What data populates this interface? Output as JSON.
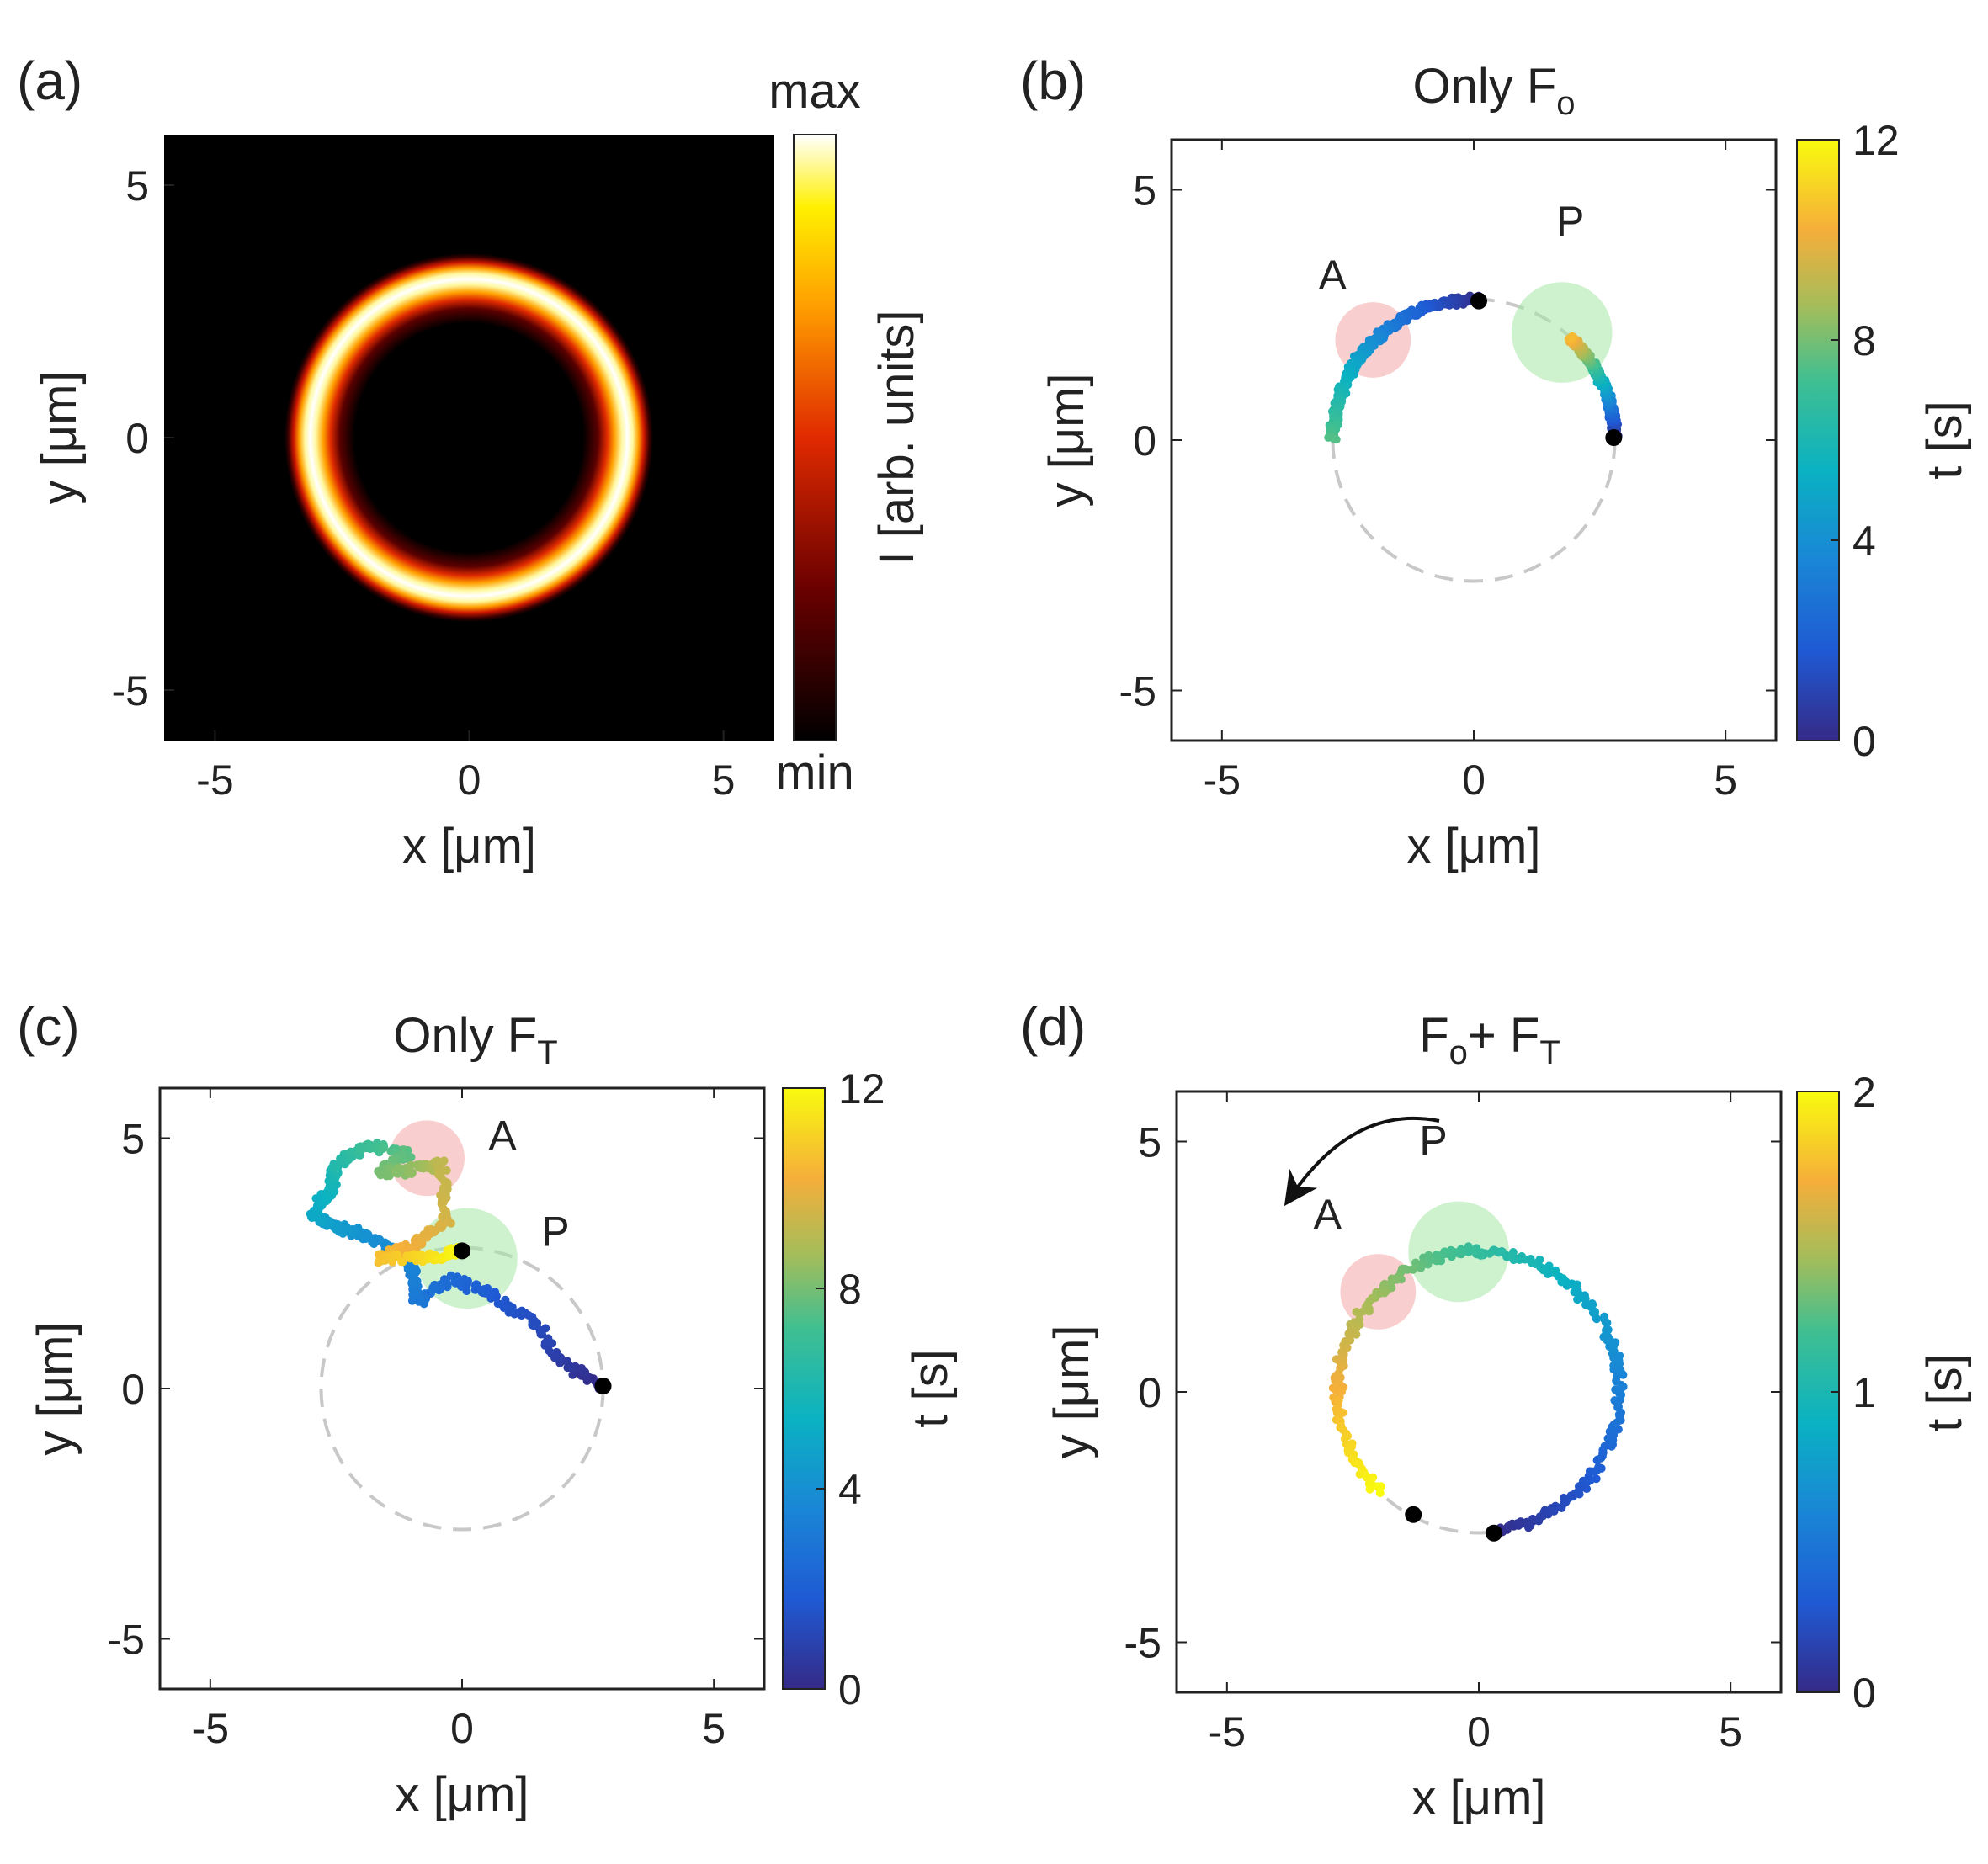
{
  "figure": {
    "panels": [
      {
        "id": "a",
        "label": "(a)",
        "title": "",
        "title_sub": ""
      },
      {
        "id": "b",
        "label": "(b)",
        "title": "Only F",
        "title_sub": "o"
      },
      {
        "id": "c",
        "label": "(c)",
        "title": "Only F",
        "title_sub": "T"
      },
      {
        "id": "d",
        "label": "(d)",
        "title": "F",
        "title_sub": "o",
        "title_rest": "+ F",
        "title_sub2": "T"
      }
    ],
    "xlabel_prefix": "x [",
    "ylabel_prefix": "y [",
    "unit": "μm",
    "unit_suffix": "]"
  },
  "chart_data": [
    {
      "panel": "a",
      "type": "heatmap",
      "description_text": "",
      "xlim": [
        -6,
        6
      ],
      "ylim": [
        -6,
        6
      ],
      "xticks": [
        -5,
        0,
        5
      ],
      "yticks": [
        -5,
        0,
        5
      ],
      "ring_radius": 2.75,
      "colormap": [
        "#000000",
        "#7a0000",
        "#e02000",
        "#ff9a00",
        "#ffe600",
        "#ffffff"
      ],
      "colorbar": {
        "label": "I [arb. units]",
        "top_label": "max",
        "bottom_label": "min"
      }
    },
    {
      "panel": "b",
      "type": "scatter",
      "xlim": [
        -6,
        6
      ],
      "ylim": [
        -6,
        6
      ],
      "xticks": [
        -5,
        0,
        5
      ],
      "yticks": [
        -5,
        0,
        5
      ],
      "guide_circle_radius": 2.8,
      "regions": [
        {
          "name": "A",
          "x": -2.0,
          "y": 2.0,
          "r": 0.75,
          "color": "#f4a6a6"
        },
        {
          "name": "P",
          "x": 1.75,
          "y": 2.15,
          "r": 1.0,
          "color": "#a6e8a6"
        }
      ],
      "start_points": [
        [
          0.1,
          2.78
        ],
        [
          2.78,
          0.05
        ]
      ],
      "trajectories": [
        {
          "name": "left",
          "arc_start_deg": 88,
          "arc_end_deg": 180,
          "t_start": 0,
          "t_end": 7.5,
          "noise": 0.07
        },
        {
          "name": "right",
          "arc_start_deg": 1,
          "arc_end_deg": 47,
          "t_start": 0,
          "t_end": 10.5,
          "noise": 0.06
        }
      ],
      "colorbar": {
        "label": "t [s]",
        "range": [
          0,
          12
        ],
        "ticks": [
          0,
          4,
          8,
          12
        ]
      }
    },
    {
      "panel": "c",
      "type": "scatter",
      "xlim": [
        -6,
        6
      ],
      "ylim": [
        -6,
        6
      ],
      "xticks": [
        -5,
        0,
        5
      ],
      "yticks": [
        -5,
        0,
        5
      ],
      "guide_circle_radius": 2.8,
      "regions": [
        {
          "name": "A",
          "x": -0.7,
          "y": 4.6,
          "r": 0.75,
          "color": "#f4a6a6"
        },
        {
          "name": "P",
          "x": 0.1,
          "y": 2.6,
          "r": 1.0,
          "color": "#a6e8a6"
        }
      ],
      "start_points": [
        [
          2.8,
          0.05
        ],
        [
          0.0,
          2.75
        ]
      ],
      "trajectory_waypoints": [
        {
          "x": 2.8,
          "y": 0.05,
          "t": 0
        },
        {
          "x": 2.0,
          "y": 0.5,
          "t": 0.6
        },
        {
          "x": 1.5,
          "y": 1.25,
          "t": 1.2
        },
        {
          "x": 0.6,
          "y": 1.85,
          "t": 1.8
        },
        {
          "x": -0.2,
          "y": 2.2,
          "t": 2.4
        },
        {
          "x": -0.9,
          "y": 1.7,
          "t": 3.0
        },
        {
          "x": -1.0,
          "y": 2.5,
          "t": 3.5
        },
        {
          "x": -1.9,
          "y": 3.05,
          "t": 4.0
        },
        {
          "x": -2.6,
          "y": 3.25,
          "t": 4.6
        },
        {
          "x": -3.0,
          "y": 3.5,
          "t": 5.0
        },
        {
          "x": -2.6,
          "y": 4.0,
          "t": 5.6
        },
        {
          "x": -2.5,
          "y": 4.45,
          "t": 6.2
        },
        {
          "x": -1.9,
          "y": 4.85,
          "t": 7.0
        },
        {
          "x": -1.1,
          "y": 4.7,
          "t": 7.6
        },
        {
          "x": -1.6,
          "y": 4.3,
          "t": 8.0
        },
        {
          "x": -0.7,
          "y": 4.4,
          "t": 8.6
        },
        {
          "x": -0.4,
          "y": 4.5,
          "t": 9.2
        },
        {
          "x": -0.3,
          "y": 3.3,
          "t": 9.6
        },
        {
          "x": -0.9,
          "y": 2.9,
          "t": 10.0
        },
        {
          "x": -1.7,
          "y": 2.6,
          "t": 10.6
        },
        {
          "x": -0.7,
          "y": 2.6,
          "t": 11.2
        },
        {
          "x": 0.0,
          "y": 2.75,
          "t": 12.0
        }
      ],
      "colorbar": {
        "label": "t [s]",
        "range": [
          0,
          12
        ],
        "ticks": [
          0,
          4,
          8,
          12
        ]
      }
    },
    {
      "panel": "d",
      "type": "scatter",
      "xlim": [
        -6,
        6
      ],
      "ylim": [
        -6,
        6
      ],
      "xticks": [
        -5,
        0,
        5
      ],
      "yticks": [
        -5,
        0,
        5
      ],
      "guide_circle_radius": 2.8,
      "regions": [
        {
          "name": "A",
          "x": -2.0,
          "y": 2.0,
          "r": 0.75,
          "color": "#f4a6a6"
        },
        {
          "name": "P",
          "x": -0.4,
          "y": 2.8,
          "r": 1.0,
          "color": "#a6e8a6"
        }
      ],
      "start_points": [
        [
          -1.3,
          -2.45
        ],
        [
          0.3,
          -2.82
        ]
      ],
      "trajectory": {
        "arc_start_deg": -84,
        "arc_end_deg": 225,
        "t_start": 0,
        "t_end": 2.0,
        "noise": 0.08
      },
      "arrow": {
        "direction": "counterclockwise"
      },
      "colorbar": {
        "label": "t [s]",
        "range": [
          0,
          2
        ],
        "ticks": [
          0,
          1,
          2
        ]
      }
    }
  ]
}
